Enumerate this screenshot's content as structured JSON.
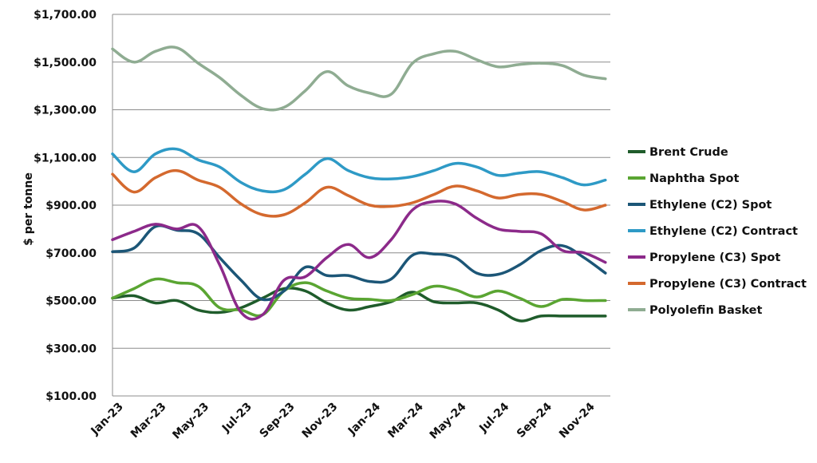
{
  "chart_data": {
    "type": "line",
    "title": "",
    "xlabel": "",
    "ylabel": "$ per tonne",
    "ylim": [
      100,
      1700
    ],
    "yticks": [
      100,
      300,
      500,
      700,
      900,
      1100,
      1300,
      1500,
      1700
    ],
    "ytick_labels": [
      "$100.00",
      "$300.00",
      "$500.00",
      "$700.00",
      "$900.00",
      "$1,100.00",
      "$1,300.00",
      "$1,500.00",
      "$1,700.00"
    ],
    "x": [
      "Jan-23",
      "Feb-23",
      "Mar-23",
      "Apr-23",
      "May-23",
      "Jun-23",
      "Jul-23",
      "Aug-23",
      "Sep-23",
      "Oct-23",
      "Nov-23",
      "Dec-23",
      "Jan-24",
      "Feb-24",
      "Mar-24",
      "Apr-24",
      "May-24",
      "Jun-24",
      "Jul-24",
      "Aug-24",
      "Sep-24",
      "Oct-24",
      "Nov-24",
      "Dec-24"
    ],
    "xtick_labels": [
      "Jan-23",
      "Mar-23",
      "May-23",
      "Jul-23",
      "Sep-23",
      "Nov-23",
      "Jan-24",
      "Mar-24",
      "May-24",
      "Jul-24",
      "Sep-24",
      "Nov-24"
    ],
    "grid": true,
    "legend_position": "right",
    "series": [
      {
        "name": "Brent Crude",
        "color": "#1f5c2b",
        "values": [
          510,
          520,
          490,
          500,
          460,
          450,
          470,
          510,
          550,
          540,
          490,
          460,
          475,
          495,
          535,
          495,
          490,
          490,
          460,
          415,
          435,
          435,
          435,
          435
        ]
      },
      {
        "name": "Naphtha Spot",
        "color": "#5aa532",
        "values": [
          510,
          550,
          590,
          575,
          560,
          470,
          460,
          440,
          540,
          575,
          540,
          510,
          505,
          500,
          525,
          560,
          545,
          515,
          540,
          510,
          475,
          505,
          500,
          500
        ]
      },
      {
        "name": "Ethylene (C2) Spot",
        "color": "#1c5677",
        "values": [
          705,
          720,
          810,
          795,
          780,
          680,
          585,
          505,
          540,
          640,
          605,
          605,
          580,
          590,
          690,
          695,
          680,
          615,
          610,
          650,
          710,
          730,
          680,
          615
        ]
      },
      {
        "name": "Ethylene (C2) Contract",
        "color": "#2e9ac6",
        "values": [
          1115,
          1040,
          1115,
          1135,
          1090,
          1060,
          995,
          960,
          965,
          1030,
          1095,
          1045,
          1015,
          1010,
          1020,
          1045,
          1075,
          1060,
          1025,
          1035,
          1040,
          1015,
          985,
          1005
        ]
      },
      {
        "name": "Propylene (C3) Spot",
        "color": "#8c2a8a",
        "values": [
          755,
          790,
          820,
          800,
          810,
          650,
          450,
          440,
          585,
          600,
          680,
          735,
          680,
          755,
          880,
          915,
          905,
          845,
          800,
          790,
          780,
          710,
          700,
          660
        ]
      },
      {
        "name": "Propylene (C3) Contract",
        "color": "#d4692e",
        "values": [
          1030,
          955,
          1015,
          1045,
          1005,
          975,
          905,
          860,
          860,
          910,
          975,
          940,
          900,
          895,
          910,
          945,
          980,
          960,
          930,
          945,
          945,
          915,
          880,
          900
        ]
      },
      {
        "name": "Polyolefin Basket",
        "color": "#8fac92",
        "values": [
          1555,
          1500,
          1545,
          1560,
          1495,
          1435,
          1360,
          1305,
          1310,
          1380,
          1460,
          1400,
          1370,
          1365,
          1495,
          1535,
          1545,
          1510,
          1480,
          1490,
          1495,
          1485,
          1445,
          1430
        ]
      }
    ]
  }
}
